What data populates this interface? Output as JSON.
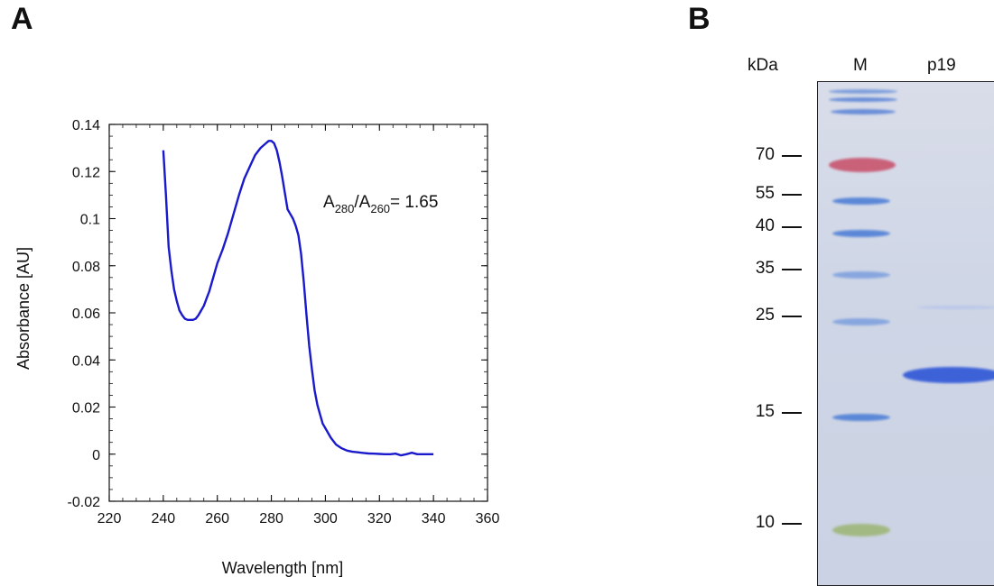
{
  "panels": {
    "a": {
      "label": "A"
    },
    "b": {
      "label": "B"
    }
  },
  "chart_data": {
    "type": "line",
    "xlabel": "Wavelength [nm]",
    "ylabel": "Absorbance [AU]",
    "xlim": [
      220,
      360
    ],
    "ylim": [
      -0.02,
      0.14
    ],
    "xticks": [
      "220",
      "240",
      "260",
      "280",
      "300",
      "320",
      "340",
      "360"
    ],
    "yticks": [
      "-0.02",
      "0",
      "0.02",
      "0.04",
      "0.06",
      "0.08",
      "0.1",
      "0.12",
      "0.14"
    ],
    "annotation": {
      "main": "A",
      "sub1": "280",
      "mid": "/A",
      "sub2": "260",
      "tail": "= 1.65"
    },
    "line_color": "#1a1acc",
    "grid": false,
    "series": [
      {
        "x": [
          240,
          241,
          242,
          243,
          244,
          245,
          246,
          247,
          248,
          249,
          250,
          251,
          252,
          253,
          254,
          255,
          256,
          257,
          258,
          259,
          260,
          262,
          264,
          266,
          268,
          270,
          272,
          274,
          276,
          278,
          279,
          280,
          281,
          282,
          283,
          284,
          285,
          286,
          287,
          288,
          289,
          290,
          291,
          292,
          293,
          294,
          295,
          296,
          297,
          298,
          299,
          300,
          302,
          304,
          306,
          308,
          310,
          312,
          314,
          316,
          318,
          320,
          322,
          324,
          326,
          328,
          330,
          332,
          334,
          336,
          338,
          340
        ],
        "y": [
          0.129,
          0.11,
          0.088,
          0.078,
          0.07,
          0.065,
          0.061,
          0.059,
          0.0575,
          0.057,
          0.057,
          0.057,
          0.0575,
          0.059,
          0.061,
          0.063,
          0.066,
          0.069,
          0.073,
          0.077,
          0.081,
          0.087,
          0.094,
          0.102,
          0.11,
          0.117,
          0.122,
          0.127,
          0.13,
          0.132,
          0.133,
          0.133,
          0.132,
          0.129,
          0.124,
          0.118,
          0.111,
          0.104,
          0.102,
          0.1,
          0.097,
          0.093,
          0.085,
          0.073,
          0.059,
          0.046,
          0.036,
          0.027,
          0.021,
          0.017,
          0.013,
          0.011,
          0.007,
          0.004,
          0.0025,
          0.0015,
          0.001,
          0.0008,
          0.0005,
          0.0003,
          0.0002,
          0.0001,
          0.0,
          0.0,
          0.0002,
          -0.0005,
          0.0,
          0.0006,
          0.0,
          0.0,
          0.0,
          0.0
        ]
      }
    ]
  },
  "gel": {
    "unit_label": "kDa",
    "lanes": [
      "M",
      "p19"
    ],
    "markers": [
      {
        "label": "70",
        "kda": 70,
        "color": "#c8546e"
      },
      {
        "label": "55",
        "kda": 55,
        "color": "#4f7fd6"
      },
      {
        "label": "40",
        "kda": 40,
        "color": "#4f7fd6"
      },
      {
        "label": "35",
        "kda": 35,
        "color": "#6a93dc"
      },
      {
        "label": "25",
        "kda": 25,
        "color": "#6a93dc"
      },
      {
        "label": "15",
        "kda": 15,
        "color": "#4f7fd6"
      },
      {
        "label": "10",
        "kda": 10,
        "color": "#9fb77a"
      }
    ]
  }
}
